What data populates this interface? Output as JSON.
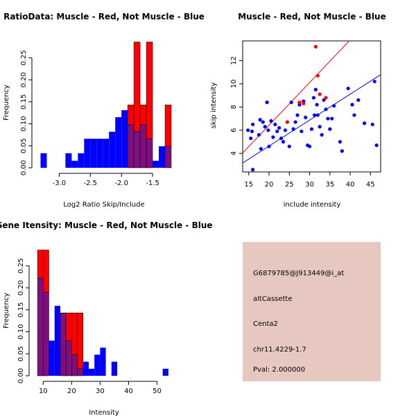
{
  "colors": {
    "muscle": "#ff0000",
    "not_muscle": "#0000ff",
    "overlap": "#7f0f7f",
    "panel_bg": "#e6c8c0",
    "pval": "#aa0000"
  },
  "chart_data": [
    {
      "type": "histogram",
      "title": "RatioData: Muscle - Red, Not Muscle - Blue",
      "xlabel": "Log2 Ratio Skip/Include",
      "ylabel": "Frequency",
      "xlim": [
        -3.35,
        -1.2
      ],
      "ylim": [
        0,
        0.29
      ],
      "x_ticks": [
        -3.0,
        -2.5,
        -2.0,
        -1.5
      ],
      "y_ticks": [
        0.0,
        0.05,
        0.1,
        0.15,
        0.2,
        0.25
      ],
      "bin_edges": [
        -3.3,
        -3.2,
        -3.1,
        -3.0,
        -2.9,
        -2.8,
        -2.7,
        -2.6,
        -2.5,
        -2.4,
        -2.3,
        -2.2,
        -2.1,
        -2.0,
        -1.9,
        -1.8,
        -1.7,
        -1.6,
        -1.5,
        -1.4,
        -1.3,
        -1.2
      ],
      "series": [
        {
          "name": "Not Muscle",
          "color": "blue",
          "values": [
            0.033,
            0,
            0,
            0,
            0.033,
            0.016,
            0.033,
            0.066,
            0.066,
            0.066,
            0.066,
            0.082,
            0.115,
            0.131,
            0.098,
            0.082,
            0.098,
            0.066,
            0.016,
            0.049,
            0.049
          ]
        },
        {
          "name": "Muscle",
          "color": "red",
          "values": [
            0,
            0,
            0,
            0,
            0,
            0,
            0,
            0,
            0,
            0,
            0,
            0,
            0,
            0,
            0.143,
            0.286,
            0.143,
            0.286,
            0,
            0,
            0.143
          ]
        }
      ]
    },
    {
      "type": "scatter",
      "title": "Muscle - Red, Not Muscle - Blue",
      "xlabel": "include intensity",
      "ylabel": "skip intensity",
      "xlim": [
        13.5,
        47.5
      ],
      "ylim": [
        2.4,
        13.7
      ],
      "x_ticks": [
        15,
        20,
        25,
        30,
        35,
        40,
        45
      ],
      "y_ticks": [
        4,
        6,
        8,
        10,
        12
      ],
      "series": [
        {
          "name": "Not Muscle",
          "color": "blue",
          "points": [
            [
              14.8,
              6.0
            ],
            [
              15.5,
              5.3
            ],
            [
              16.0,
              6.5
            ],
            [
              15.8,
              5.9
            ],
            [
              16.0,
              2.6
            ],
            [
              17.5,
              5.6
            ],
            [
              17.8,
              6.9
            ],
            [
              18.0,
              4.4
            ],
            [
              18.5,
              6.7
            ],
            [
              19.0,
              6.3
            ],
            [
              19.5,
              8.4
            ],
            [
              19.8,
              6.0
            ],
            [
              20.0,
              4.6
            ],
            [
              20.5,
              6.8
            ],
            [
              21.0,
              5.4
            ],
            [
              21.5,
              6.5
            ],
            [
              22.0,
              5.9
            ],
            [
              22.5,
              6.2
            ],
            [
              23.0,
              5.3
            ],
            [
              23.5,
              5.0
            ],
            [
              24.0,
              6.0
            ],
            [
              24.5,
              6.7
            ],
            [
              25.0,
              4.6
            ],
            [
              25.5,
              8.4
            ],
            [
              26.0,
              6.1
            ],
            [
              26.5,
              6.7
            ],
            [
              27.0,
              7.3
            ],
            [
              27.5,
              8.2
            ],
            [
              28.0,
              5.9
            ],
            [
              28.5,
              8.5
            ],
            [
              29.0,
              7.1
            ],
            [
              29.5,
              4.7
            ],
            [
              30.0,
              4.6
            ],
            [
              30.5,
              6.1
            ],
            [
              31.0,
              8.8
            ],
            [
              31.2,
              7.3
            ],
            [
              31.5,
              9.5
            ],
            [
              31.8,
              8.2
            ],
            [
              32.0,
              7.3
            ],
            [
              32.5,
              6.3
            ],
            [
              33.0,
              5.6
            ],
            [
              33.5,
              8.6
            ],
            [
              34.0,
              7.8
            ],
            [
              34.5,
              7.0
            ],
            [
              35.0,
              6.1
            ],
            [
              35.5,
              7.0
            ],
            [
              36.0,
              8.1
            ],
            [
              37.5,
              5.0
            ],
            [
              38.0,
              4.2
            ],
            [
              39.5,
              9.6
            ],
            [
              40.5,
              8.2
            ],
            [
              41.0,
              7.3
            ],
            [
              42.0,
              8.6
            ],
            [
              43.5,
              6.6
            ],
            [
              45.5,
              6.5
            ],
            [
              46.0,
              10.2
            ],
            [
              46.5,
              4.7
            ]
          ]
        },
        {
          "name": "Muscle",
          "color": "red",
          "points": [
            [
              24.5,
              6.7
            ],
            [
              27.5,
              8.4
            ],
            [
              28.5,
              8.3
            ],
            [
              31.5,
              13.2
            ],
            [
              32.0,
              10.7
            ],
            [
              32.5,
              9.1
            ],
            [
              34.0,
              8.8
            ]
          ]
        }
      ],
      "fit_lines": [
        {
          "name": "Not Muscle fit",
          "color": "blue",
          "intercept": 0.15,
          "slope": 0.224
        },
        {
          "name": "Muscle fit",
          "color": "red",
          "intercept": -0.93,
          "slope": 0.368
        }
      ]
    },
    {
      "type": "histogram",
      "title": "Gene Itensity: Muscle - Red, Not Muscle - Blue",
      "xlabel": "Intensity",
      "ylabel": "Frequency",
      "xlim": [
        7,
        55
      ],
      "ylim": [
        0,
        0.29
      ],
      "x_ticks": [
        10,
        20,
        30,
        40,
        50
      ],
      "y_ticks": [
        0.0,
        0.05,
        0.1,
        0.15,
        0.2,
        0.25
      ],
      "bin_edges": [
        8,
        10,
        12,
        14,
        16,
        18,
        20,
        22,
        24,
        26,
        28,
        30,
        32,
        34,
        36,
        38,
        40,
        42,
        44,
        46,
        48,
        50,
        52,
        54
      ],
      "series": [
        {
          "name": "Not Muscle",
          "color": "blue",
          "values": [
            0.222,
            0.19,
            0.08,
            0.159,
            0.143,
            0.08,
            0.048,
            0.016,
            0.032,
            0.016,
            0.048,
            0.064,
            0,
            0.032,
            0,
            0,
            0,
            0,
            0,
            0,
            0,
            0,
            0.016
          ]
        },
        {
          "name": "Muscle",
          "color": "red",
          "values": [
            0.286,
            0.286,
            0,
            0,
            0.143,
            0.143,
            0.143,
            0.143,
            0,
            0,
            0,
            0,
            0,
            0,
            0,
            0,
            0,
            0,
            0,
            0,
            0,
            0,
            0
          ]
        }
      ]
    }
  ],
  "info_panel": {
    "probe_id": "G6879785@J913449@i_at",
    "event_type": "altCassette",
    "gene_name": "Centa2",
    "location": "chr11.4229-1.7",
    "pval": "Pval: 2.000000"
  }
}
